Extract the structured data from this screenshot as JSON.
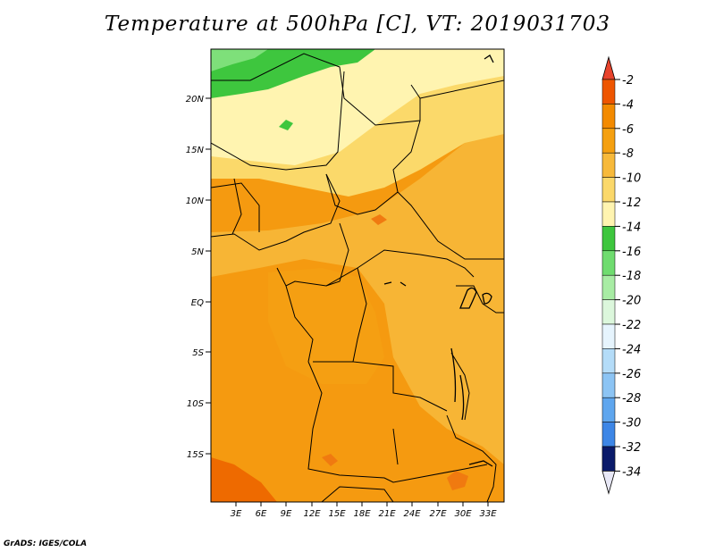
{
  "title": "Temperature at 500hPa [C], VT: 2019031703",
  "credit": "GrADS: IGES/COLA",
  "map": {
    "lat_labels": [
      "20N",
      "15N",
      "10N",
      "5N",
      "EQ",
      "5S",
      "10S",
      "15S"
    ],
    "lon_labels": [
      "3E",
      "6E",
      "9E",
      "12E",
      "15E",
      "18E",
      "21E",
      "24E",
      "27E",
      "30E",
      "33E"
    ]
  },
  "legend": {
    "levels": [
      {
        "label": "-2",
        "color": "#ee5500"
      },
      {
        "label": "-4",
        "color": "#f38a00"
      },
      {
        "label": "-6",
        "color": "#f5a010"
      },
      {
        "label": "-8",
        "color": "#f7b93a"
      },
      {
        "label": "-10",
        "color": "#fbd86a"
      },
      {
        "label": "-12",
        "color": "#fff4b0"
      },
      {
        "label": "-14",
        "color": "#3ec63e"
      },
      {
        "label": "-16",
        "color": "#6fdc6f"
      },
      {
        "label": "-18",
        "color": "#a8eca4"
      },
      {
        "label": "-20",
        "color": "#dcf7dc"
      },
      {
        "label": "-22",
        "color": "#e6f4fd"
      },
      {
        "label": "-24",
        "color": "#b4dcf8"
      },
      {
        "label": "-26",
        "color": "#8cc4f4"
      },
      {
        "label": "-28",
        "color": "#5fa6ee"
      },
      {
        "label": "-30",
        "color": "#3d86e6"
      },
      {
        "label": "-32",
        "color": "#1f60d4"
      },
      {
        "label": "-34",
        "color": "#0a3aaa"
      }
    ],
    "top_arrow_color": "#e8432c",
    "bottom_arrow_color": "#0a1a6a",
    "bottom_tip_color": "#e8e8f6"
  }
}
